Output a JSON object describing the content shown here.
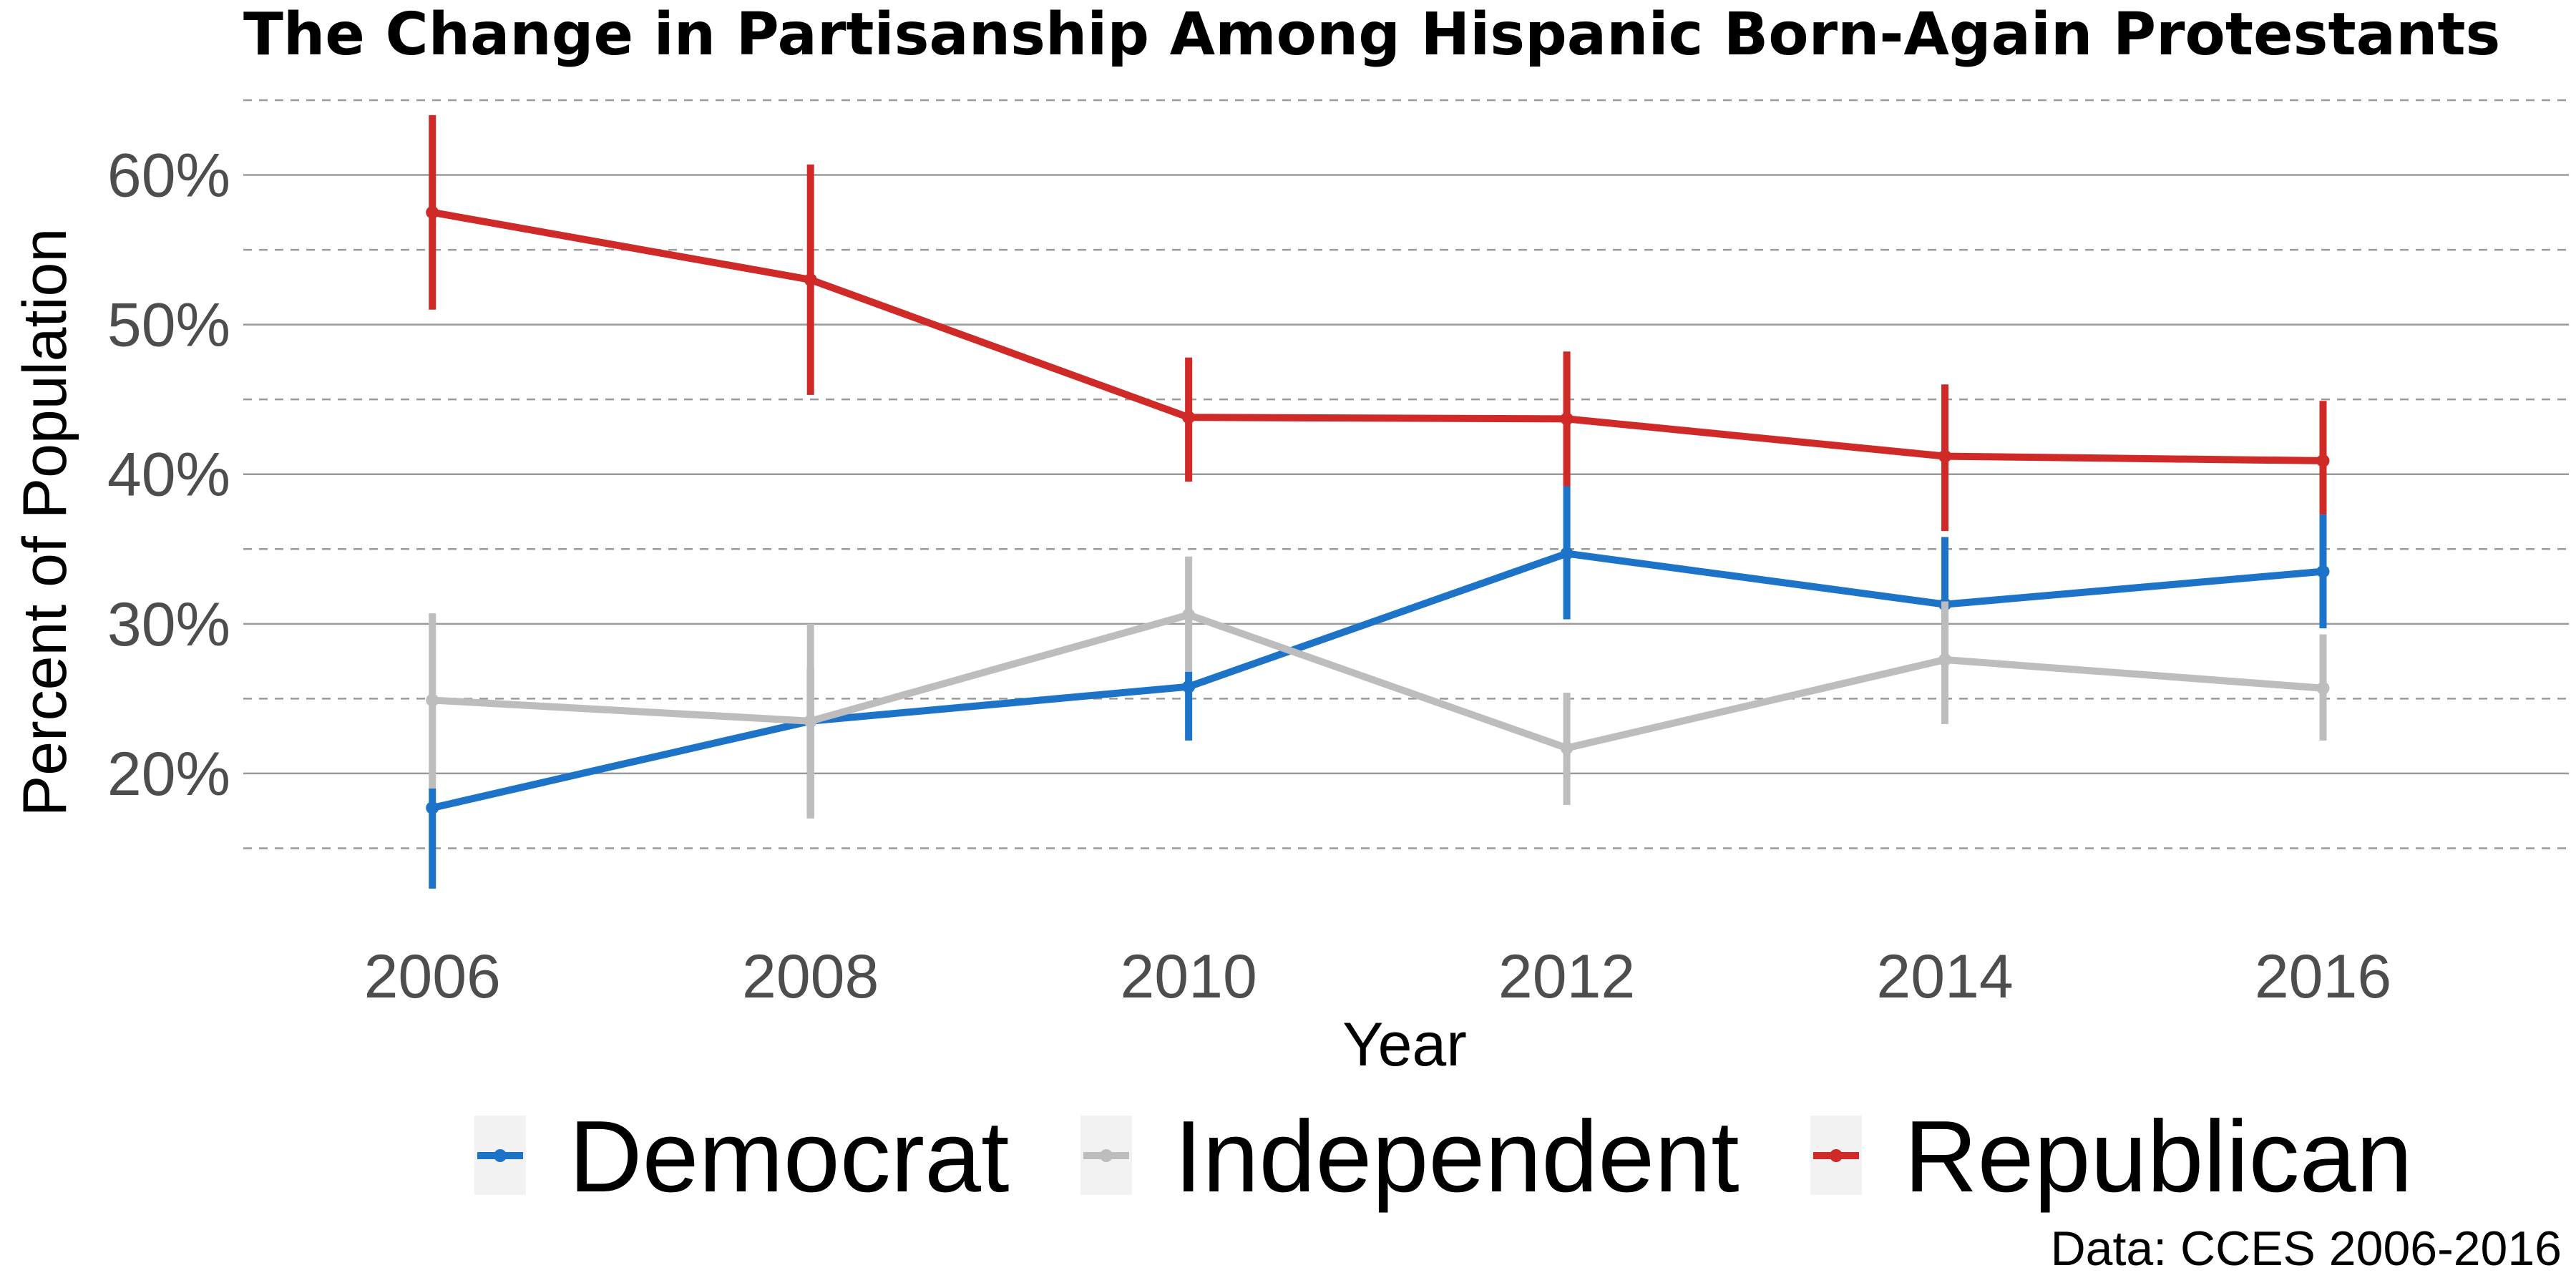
{
  "chart_data": {
    "type": "line",
    "title": "The Change in Partisanship Among Hispanic Born-Again Protestants",
    "xlabel": "Year",
    "ylabel": "Percent of Population",
    "caption": "Data: CCES 2006-2016",
    "x": [
      2006,
      2008,
      2010,
      2012,
      2014,
      2016
    ],
    "x_tick_labels": [
      "2006",
      "2008",
      "2010",
      "2012",
      "2014",
      "2016"
    ],
    "xlim": [
      2005,
      2017.3
    ],
    "ylim": [
      10,
      65
    ],
    "y_ticks": [
      20,
      30,
      40,
      50,
      60
    ],
    "y_tick_labels": [
      "20%",
      "30%",
      "40%",
      "50%",
      "60%"
    ],
    "y_minor_gridlines": [
      15,
      25,
      35,
      45,
      55,
      65
    ],
    "grid": true,
    "legend_position": "bottom",
    "series": [
      {
        "name": "Democrat",
        "color": "#1c73c8",
        "values": [
          17.7,
          23.5,
          25.8,
          34.7,
          31.3,
          33.5
        ],
        "error_low": [
          12.3,
          17.0,
          22.2,
          30.3,
          27.2,
          29.7
        ],
        "error_high": [
          19.0,
          27.0,
          26.8,
          39.2,
          35.8,
          37.3
        ]
      },
      {
        "name": "Independent",
        "color": "#bdbdbd",
        "values": [
          24.9,
          23.5,
          30.6,
          21.7,
          27.6,
          25.7
        ],
        "error_low": [
          19.0,
          17.0,
          26.8,
          17.9,
          23.3,
          22.2
        ],
        "error_high": [
          30.7,
          30.0,
          34.5,
          25.4,
          31.5,
          29.3
        ]
      },
      {
        "name": "Republican",
        "color": "#cf2a27",
        "values": [
          57.5,
          53.0,
          43.8,
          43.7,
          41.2,
          40.9
        ],
        "error_low": [
          51.0,
          45.3,
          39.5,
          39.2,
          36.2,
          37.3
        ],
        "error_high": [
          64.0,
          60.7,
          47.8,
          48.2,
          46.0,
          44.9
        ]
      }
    ]
  }
}
